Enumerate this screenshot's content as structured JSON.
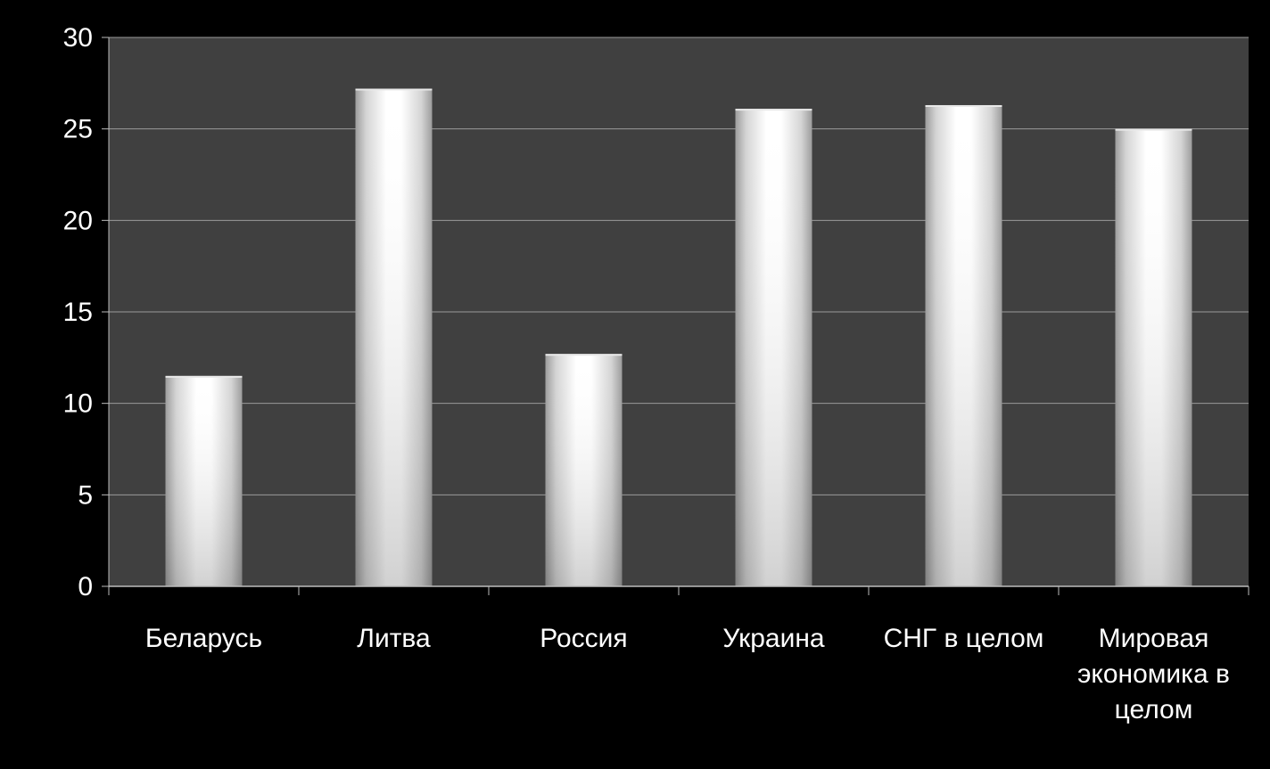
{
  "chart_data": {
    "type": "bar",
    "categories": [
      [
        "Беларусь"
      ],
      [
        "Литва"
      ],
      [
        "Россия"
      ],
      [
        "Украина"
      ],
      [
        "СНГ в целом"
      ],
      [
        "Мировая",
        "экономика в",
        "целом"
      ]
    ],
    "values": [
      11.5,
      27.2,
      12.7,
      26.1,
      26.3,
      25.0
    ],
    "ylim": [
      0,
      30
    ],
    "yticks": [
      0,
      5,
      10,
      15,
      20,
      25,
      30
    ],
    "grid": true,
    "legend": "none",
    "title": "",
    "xlabel": "",
    "ylabel": ""
  },
  "colors": {
    "page_background": "#000000",
    "plot_background": "#404040",
    "gridline": "#9a9a9a",
    "axis": "#bdbdbd",
    "text": "#ffffff",
    "bar_center": "#ffffff",
    "bar_edge": "#a8a8a8"
  }
}
